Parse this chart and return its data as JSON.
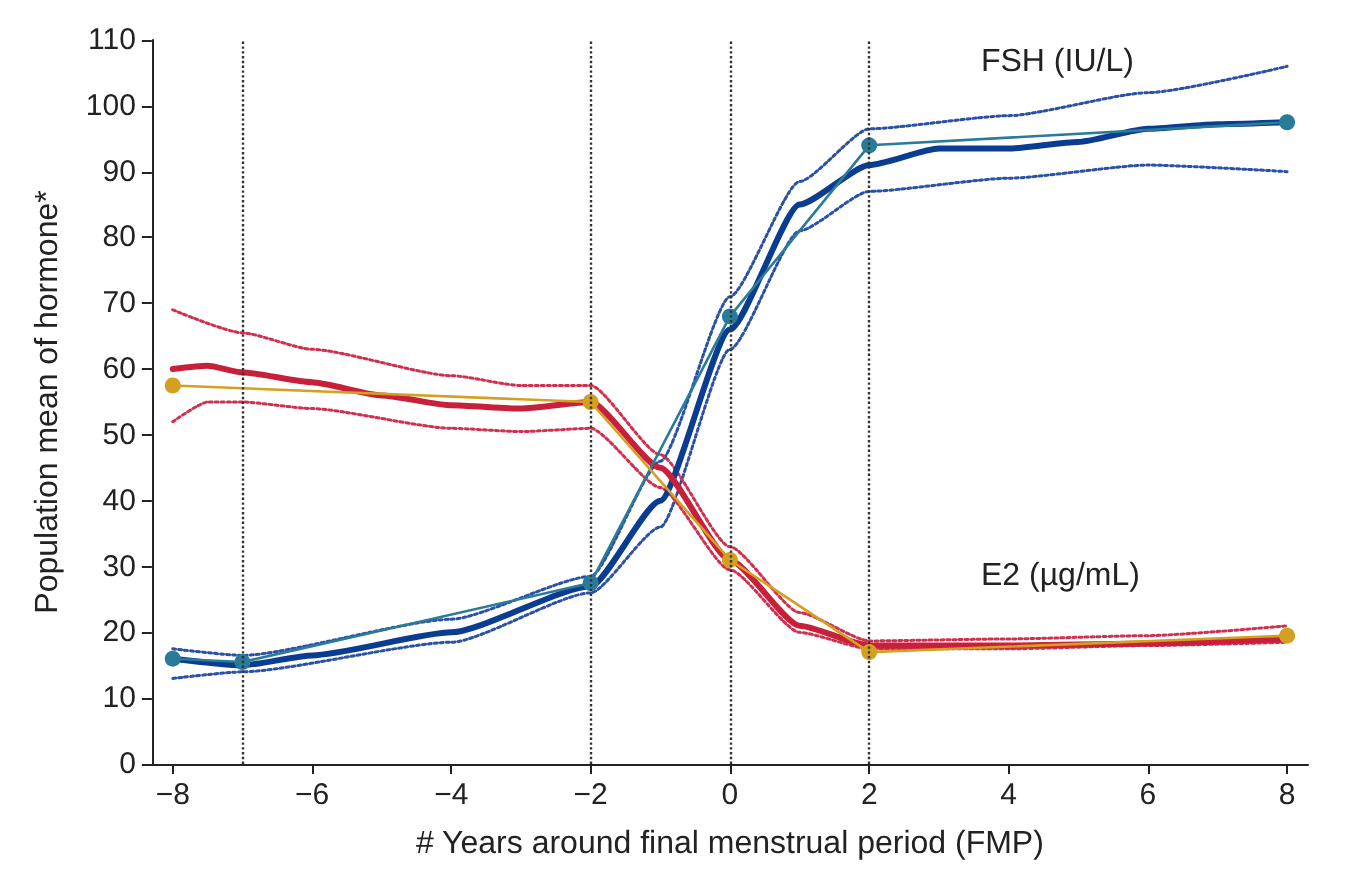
{
  "chart_data": {
    "type": "line",
    "xlabel": "# Years around final menstrual period (FMP)",
    "ylabel": "Population mean of hormone*",
    "xlim": [
      -8.3,
      8.3
    ],
    "ylim": [
      0,
      110
    ],
    "xticks": [
      {
        "value": -8,
        "label": "−8"
      },
      {
        "value": -6,
        "label": "−6"
      },
      {
        "value": -4,
        "label": "−4"
      },
      {
        "value": -2,
        "label": "−2"
      },
      0,
      2,
      4,
      6,
      8
    ],
    "yticks": [
      0,
      10,
      20,
      30,
      40,
      50,
      60,
      70,
      80,
      90,
      100,
      110
    ],
    "grid": false,
    "ref_lines": [
      {
        "axis": "x",
        "value": -7,
        "color": "#333333",
        "line_style": "dotted"
      },
      {
        "axis": "x",
        "value": -2,
        "color": "#333333",
        "line_style": "dotted"
      },
      {
        "axis": "x",
        "value": 0,
        "color": "#333333",
        "line_style": "dotted"
      },
      {
        "axis": "x",
        "value": 2,
        "color": "#333333",
        "line_style": "dotted"
      }
    ],
    "annotations": [
      "FSH (IU/L)",
      "E2 (µg/mL)"
    ],
    "series": [
      {
        "color": "#2a50a8",
        "line_style": "dotted",
        "marker": "none",
        "x": [
          -8,
          -7,
          -4,
          -2,
          -1,
          0,
          1,
          2,
          4,
          6,
          8
        ],
        "values": [
          17.5,
          16.5,
          22,
          28.5,
          46,
          71,
          88.5,
          96.5,
          98.5,
          102,
          106
        ]
      },
      {
        "color": "#2a50a8",
        "line_style": "dotted",
        "marker": "none",
        "x": [
          -8,
          -7,
          -4,
          -2,
          -1,
          0,
          1,
          2,
          4,
          6,
          8
        ],
        "values": [
          13,
          14,
          18.5,
          26,
          36,
          63,
          81,
          87,
          89,
          91,
          90
        ]
      },
      {
        "color": "#d03050",
        "line_style": "dotted",
        "marker": "none",
        "x": [
          -8,
          -7,
          -6,
          -4,
          -3,
          -2,
          -1,
          0,
          1,
          2,
          4,
          6,
          8
        ],
        "values": [
          69,
          65.5,
          63,
          59,
          57.5,
          57.5,
          47,
          33,
          23,
          18.7,
          19,
          19.5,
          21
        ]
      },
      {
        "color": "#d03050",
        "line_style": "dotted",
        "marker": "none",
        "x": [
          -8,
          -7.5,
          -7,
          -6,
          -4,
          -3,
          -2,
          -1,
          0,
          1,
          2,
          4,
          6,
          8
        ],
        "values": [
          52,
          55,
          55,
          54,
          51,
          50.5,
          51,
          42,
          29.5,
          20,
          17.5,
          17.5,
          18,
          18.5
        ]
      },
      {
        "color": "#0a3d91",
        "line_style": "solid",
        "marker": "none",
        "x": [
          -8,
          -7,
          -6,
          -4,
          -2,
          -1,
          0,
          1,
          2,
          3,
          4,
          5,
          6,
          7,
          8
        ],
        "values": [
          16,
          15,
          16.5,
          20,
          27,
          40,
          66,
          85,
          91,
          93.5,
          93.5,
          94.5,
          96.5,
          97.2,
          97.5
        ]
      },
      {
        "color": "#c8203a",
        "line_style": "solid",
        "marker": "none",
        "x": [
          -8,
          -7.5,
          -7,
          -6,
          -5,
          -4,
          -3,
          -2,
          -1,
          0,
          1,
          2,
          4,
          6,
          8
        ],
        "values": [
          60,
          60.5,
          59.5,
          58,
          56,
          54.5,
          54,
          55,
          45,
          31,
          21,
          18,
          18,
          18.3,
          19
        ]
      },
      {
        "color": "#2a7a9a",
        "line_style": "solid",
        "marker": "circle",
        "x": [
          -8,
          -7,
          -2,
          0,
          2,
          8
        ],
        "values": [
          16,
          15.5,
          27.5,
          68,
          94,
          97.5
        ]
      },
      {
        "color": "#d4a020",
        "line_style": "solid",
        "marker": "circle",
        "x": [
          -8,
          -2,
          0,
          2,
          8
        ],
        "values": [
          57.5,
          55,
          31,
          17,
          19.5
        ]
      }
    ]
  }
}
